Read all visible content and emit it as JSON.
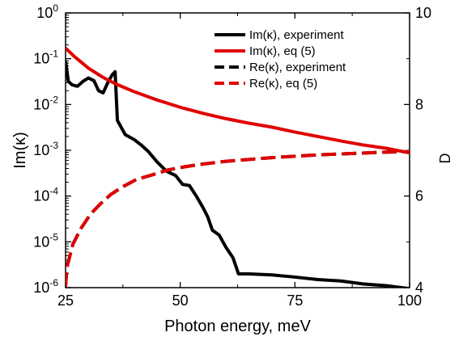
{
  "chart_data": {
    "type": "line",
    "xlabel": "Photon energy, meV",
    "ylabel_left": "Im(κ)",
    "ylabel_right": "D",
    "xlim": [
      25,
      100
    ],
    "ylim_left": [
      1e-06,
      1
    ],
    "ylim_right": [
      4,
      10
    ],
    "y_left_scale": "log",
    "grid": false,
    "x_ticks": [
      25,
      50,
      75,
      100
    ],
    "x_tick_labels": [
      "25",
      "50",
      "75",
      "100"
    ],
    "y_left_ticks": [
      1,
      0.1,
      0.01,
      0.001,
      0.0001,
      1e-05,
      1e-06
    ],
    "y_left_tick_labels": [
      {
        "base": "10",
        "exp": "0"
      },
      {
        "base": "10",
        "exp": "-1"
      },
      {
        "base": "10",
        "exp": "-2"
      },
      {
        "base": "10",
        "exp": "-3"
      },
      {
        "base": "10",
        "exp": "-4"
      },
      {
        "base": "10",
        "exp": "-5"
      },
      {
        "base": "10",
        "exp": "-6"
      }
    ],
    "y_right_ticks": [
      10,
      8,
      6,
      4
    ],
    "y_right_tick_labels": [
      "10",
      "8",
      "6",
      "4"
    ],
    "legend_position": "top-right",
    "series": [
      {
        "name": "Im(κ), experiment",
        "color": "#000000",
        "dash": "solid",
        "axis": "left",
        "x": [
          25,
          25.6,
          26.4,
          27.6,
          28.8,
          30.0,
          31.2,
          32.2,
          33.2,
          34.2,
          35.2,
          35.8,
          36.3,
          38,
          40,
          41.5,
          43,
          45,
          47,
          49,
          50.5,
          52,
          53.5,
          55,
          56,
          57,
          58.5,
          60,
          61.5,
          62.7,
          65,
          70,
          75,
          80,
          85,
          90,
          95,
          100
        ],
        "y": [
          0.09,
          0.032,
          0.027,
          0.025,
          0.032,
          0.038,
          0.033,
          0.02,
          0.018,
          0.03,
          0.045,
          0.052,
          0.0045,
          0.0022,
          0.0017,
          0.0013,
          0.00095,
          0.00055,
          0.00035,
          0.00028,
          0.00018,
          0.00017,
          0.0001,
          5.5e-05,
          3.5e-05,
          1.8e-05,
          1.4e-05,
          7.5e-06,
          4.5e-06,
          2e-06,
          2e-06,
          1.9e-06,
          1.7e-06,
          1.5e-06,
          1.4e-06,
          1.2e-06,
          1.1e-06,
          9.5e-07
        ]
      },
      {
        "name": "Im(κ), eq (5)",
        "color": "#e00000",
        "dash": "solid",
        "axis": "left",
        "x": [
          25,
          27,
          30,
          33,
          36,
          40,
          45,
          50,
          55,
          60,
          65,
          70,
          75,
          80,
          85,
          90,
          95,
          100
        ],
        "y": [
          0.17,
          0.11,
          0.062,
          0.04,
          0.028,
          0.019,
          0.0125,
          0.0087,
          0.0064,
          0.0049,
          0.0039,
          0.0032,
          0.0025,
          0.002,
          0.0016,
          0.0013,
          0.0011,
          0.00088
        ]
      },
      {
        "name": "Re(κ), experiment",
        "color": "#000000",
        "dash": "dashed",
        "axis": "right",
        "x": [
          25,
          25.3,
          26.6,
          28.4,
          30.4,
          32.6,
          34.8,
          37.4,
          40.4,
          43.8,
          47.3,
          51,
          55,
          60,
          65,
          70,
          75,
          80,
          85,
          90,
          95,
          100
        ],
        "y": [
          4.02,
          4.45,
          4.95,
          5.3,
          5.6,
          5.83,
          6.03,
          6.2,
          6.36,
          6.46,
          6.57,
          6.64,
          6.7,
          6.76,
          6.8,
          6.84,
          6.87,
          6.9,
          6.92,
          6.94,
          6.96,
          6.97
        ]
      },
      {
        "name": "Re(κ), eq (5)",
        "color": "#e00000",
        "dash": "dashed",
        "axis": "right",
        "x": [
          25,
          25.3,
          26.6,
          28.4,
          30.4,
          32.6,
          34.8,
          37.4,
          40.4,
          43.8,
          47.3,
          51,
          55,
          60,
          65,
          70,
          75,
          80,
          85,
          90,
          95,
          100
        ],
        "y": [
          4.02,
          4.45,
          4.95,
          5.3,
          5.6,
          5.83,
          6.03,
          6.2,
          6.36,
          6.46,
          6.57,
          6.64,
          6.7,
          6.76,
          6.8,
          6.84,
          6.87,
          6.9,
          6.92,
          6.94,
          6.96,
          6.97
        ]
      }
    ]
  }
}
